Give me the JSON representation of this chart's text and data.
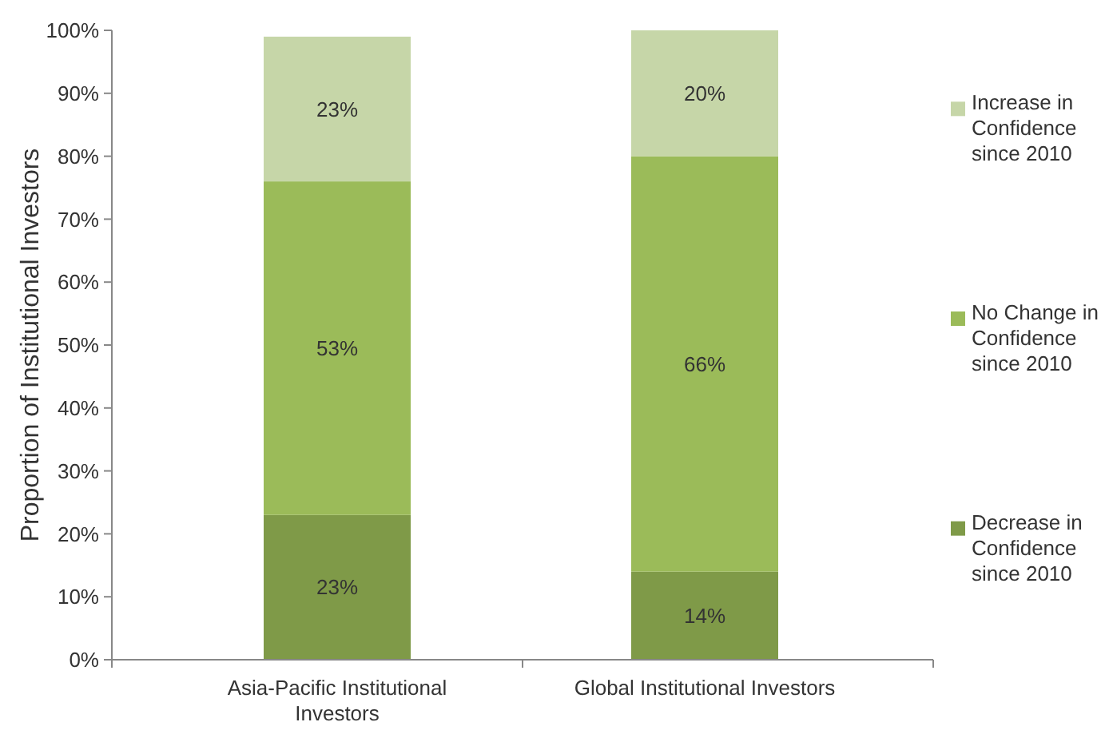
{
  "chart_data": {
    "type": "bar",
    "stacked": true,
    "ylabel": "Proportion of Institutional Investors",
    "categories": [
      "Asia-Pacific Institutional Investors",
      "Global Institutional Investors"
    ],
    "series": [
      {
        "name": "Decrease in Confidence since 2010",
        "color": "#7f9a48",
        "values": [
          23,
          14
        ],
        "value_labels": [
          "23%",
          "14%"
        ]
      },
      {
        "name": "No Change in Confidence since 2010",
        "color": "#9bbb59",
        "values": [
          53,
          66
        ],
        "value_labels": [
          "53%",
          "66%"
        ]
      },
      {
        "name": "Increase in Confidence since 2010",
        "color": "#c6d6a8",
        "values": [
          23,
          20
        ],
        "value_labels": [
          "23%",
          "20%"
        ]
      }
    ],
    "ylim": [
      0,
      100
    ],
    "yticks": [
      {
        "value": 0,
        "label": "0%"
      },
      {
        "value": 10,
        "label": "10%"
      },
      {
        "value": 20,
        "label": "20%"
      },
      {
        "value": 30,
        "label": "30%"
      },
      {
        "value": 40,
        "label": "40%"
      },
      {
        "value": 50,
        "label": "50%"
      },
      {
        "value": 60,
        "label": "60%"
      },
      {
        "value": 70,
        "label": "70%"
      },
      {
        "value": 80,
        "label": "80%"
      },
      {
        "value": 90,
        "label": "90%"
      },
      {
        "value": 100,
        "label": "100%"
      }
    ],
    "grid": false,
    "legend": "right"
  }
}
